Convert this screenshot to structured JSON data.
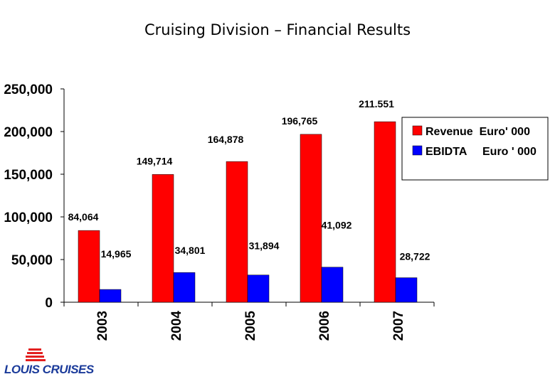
{
  "chart_data": {
    "type": "bar",
    "title": "Cruising Division – Financial Results",
    "categories": [
      "2003",
      "2004",
      "2005",
      "2006",
      "2007"
    ],
    "series": [
      {
        "name": "Revenue  Euro' 000",
        "color": "#ff0000",
        "values": [
          84064,
          149714,
          164878,
          196765,
          211551
        ],
        "labels": [
          "84,064",
          "149,714",
          "164,878",
          "196,765",
          "211.551"
        ]
      },
      {
        "name": "EBIDTA     Euro ' 000",
        "color": "#0000ff",
        "values": [
          14965,
          34801,
          31894,
          41092,
          28722
        ],
        "labels": [
          "14,965",
          "34,801",
          "31,894",
          "41,092",
          "28,722"
        ]
      }
    ],
    "ylim": [
      0,
      250000
    ],
    "yticks": [
      0,
      50000,
      100000,
      150000,
      200000,
      250000
    ],
    "ytick_labels": [
      "0",
      "50,000",
      "100,000",
      "150,000",
      "200,000",
      "250,000"
    ],
    "grid": false,
    "legend_position": "top-right"
  },
  "logo": {
    "text": "LOUIS CRUISES",
    "icon": "ship-funnel-icon"
  }
}
